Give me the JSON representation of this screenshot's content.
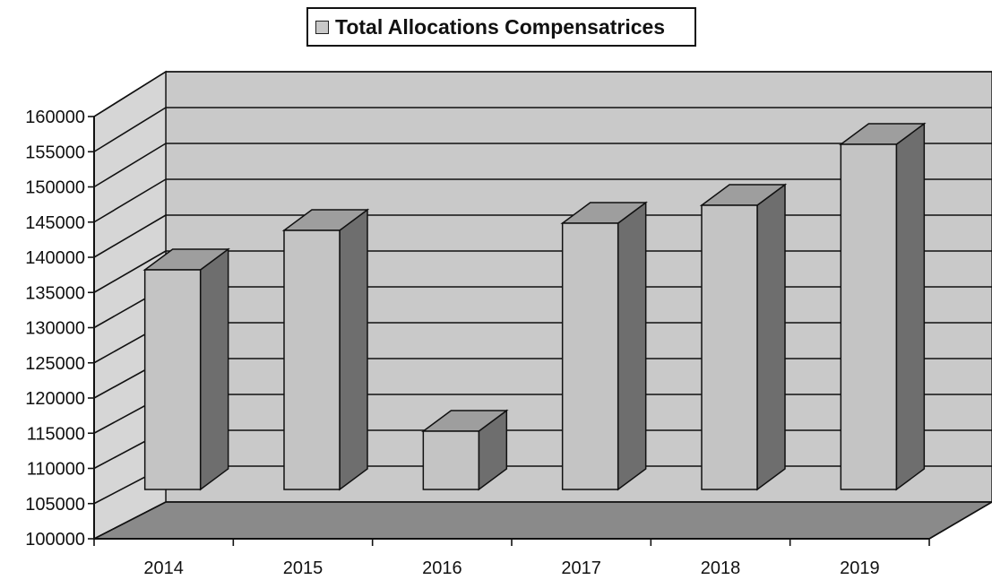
{
  "chart_data": {
    "type": "bar",
    "title": "",
    "xlabel": "",
    "ylabel": "",
    "categories": [
      "2014",
      "2015",
      "2016",
      "2017",
      "2018",
      "2019"
    ],
    "series": [
      {
        "name": "Total Allocations Compensatrices",
        "values": [
          135000,
          140500,
          112500,
          141500,
          144000,
          152500
        ]
      }
    ],
    "ylim": [
      100000,
      160000
    ],
    "ytick_step": 5000,
    "grid": true,
    "legend": "top",
    "style": "3d-column",
    "colors": {
      "bar_front": "#c4c4c4",
      "bar_top": "#9e9e9e",
      "bar_side": "#6e6e6e",
      "back_wall": "#c9c9c9",
      "side_wall": "#d6d6d6",
      "floor": "#8a8a8a",
      "grid": "#111111"
    }
  }
}
